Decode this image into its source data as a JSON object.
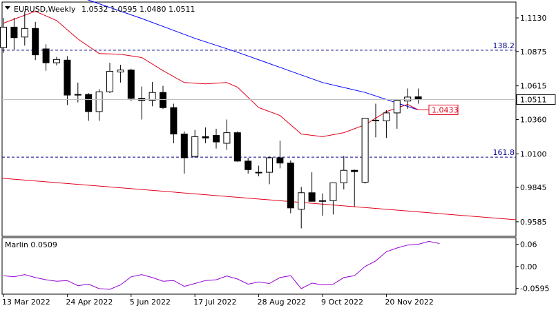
{
  "header": {
    "symbol": "EURUSD,Weekly",
    "ohlc": "1.0532 1.0595 1.0480 1.0511",
    "indicator": "Marlin 0.0509"
  },
  "colors": {
    "background": "#ffffff",
    "bull_body": "#ffffff",
    "bear_body": "#000000",
    "candle_outline": "#000000",
    "slow_ma": "#0000ff",
    "fast_ma": "#e0001a",
    "trendline": "#e0001a",
    "fib_level": "#00008b",
    "oscillator": "#9400d3",
    "grid_border": "#000000"
  },
  "chart_data": [
    {
      "type": "candlestick",
      "title": "EURUSD,Weekly",
      "ylim": [
        0.9475,
        1.125
      ],
      "y_ticks": [
        "1.1130",
        "1.0875",
        "1.0615",
        "1.0360",
        "1.0100",
        "0.9845",
        "0.9585"
      ],
      "y_tick_values": [
        1.113,
        1.0875,
        1.0615,
        1.036,
        1.01,
        0.9845,
        0.9585
      ],
      "x_ticks": [
        "13 Mar 2022",
        "24 Apr 2022",
        "5 Jun 2022",
        "17 Jul 2022",
        "28 Aug 2022",
        "9 Oct 2022",
        "20 Nov 2022"
      ],
      "x_tick_index": [
        0,
        6,
        12,
        18,
        24,
        30,
        36
      ],
      "candles": [
        {
          "o": 1.0905,
          "h": 1.113,
          "l": 1.0865,
          "c": 1.106
        },
        {
          "o": 1.106,
          "h": 1.113,
          "l": 1.089,
          "c": 1.098
        },
        {
          "o": 1.0985,
          "h": 1.118,
          "l": 1.092,
          "c": 1.105
        },
        {
          "o": 1.105,
          "h": 1.11,
          "l": 1.081,
          "c": 1.085
        },
        {
          "o": 1.0895,
          "h": 1.093,
          "l": 1.073,
          "c": 1.079
        },
        {
          "o": 1.079,
          "h": 1.0835,
          "l": 1.077,
          "c": 1.0815
        },
        {
          "o": 1.081,
          "h": 1.084,
          "l": 1.047,
          "c": 1.0545
        },
        {
          "o": 1.0545,
          "h": 1.064,
          "l": 1.049,
          "c": 1.055
        },
        {
          "o": 1.055,
          "h": 1.056,
          "l": 1.035,
          "c": 1.042
        },
        {
          "o": 1.042,
          "h": 1.059,
          "l": 1.035,
          "c": 1.057
        },
        {
          "o": 1.057,
          "h": 1.079,
          "l": 1.056,
          "c": 1.0725
        },
        {
          "o": 1.072,
          "h": 1.0775,
          "l": 1.064,
          "c": 1.0735
        },
        {
          "o": 1.0735,
          "h": 1.0745,
          "l": 1.05,
          "c": 1.052
        },
        {
          "o": 1.052,
          "h": 1.061,
          "l": 1.036,
          "c": 1.0505
        },
        {
          "o": 1.0505,
          "h": 1.0645,
          "l": 1.046,
          "c": 1.0565
        },
        {
          "o": 1.0565,
          "h": 1.0615,
          "l": 1.044,
          "c": 1.045
        },
        {
          "o": 1.045,
          "h": 1.048,
          "l": 1.018,
          "c": 1.025
        },
        {
          "o": 1.025,
          "h": 1.027,
          "l": 0.995,
          "c": 1.007
        },
        {
          "o": 1.008,
          "h": 1.028,
          "l": 1.007,
          "c": 1.023
        },
        {
          "o": 1.023,
          "h": 1.03,
          "l": 1.018,
          "c": 1.022
        },
        {
          "o": 1.024,
          "h": 1.029,
          "l": 1.014,
          "c": 1.019
        },
        {
          "o": 1.018,
          "h": 1.036,
          "l": 1.013,
          "c": 1.026
        },
        {
          "o": 1.026,
          "h": 1.027,
          "l": 1.004,
          "c": 1.0045
        },
        {
          "o": 1.0045,
          "h": 1.007,
          "l": 0.995,
          "c": 0.998
        },
        {
          "o": 0.996,
          "h": 1.001,
          "l": 0.993,
          "c": 0.996
        },
        {
          "o": 0.996,
          "h": 1.008,
          "l": 0.987,
          "c": 1.007
        },
        {
          "o": 1.007,
          "h": 1.02,
          "l": 0.999,
          "c": 1.003
        },
        {
          "o": 1.003,
          "h": 1.005,
          "l": 0.965,
          "c": 0.969
        },
        {
          "o": 0.968,
          "h": 0.985,
          "l": 0.9535,
          "c": 0.9805
        },
        {
          "o": 0.9805,
          "h": 0.996,
          "l": 0.974,
          "c": 0.974
        },
        {
          "o": 0.974,
          "h": 0.98,
          "l": 0.963,
          "c": 0.9745
        },
        {
          "o": 0.9745,
          "h": 0.988,
          "l": 0.964,
          "c": 0.988
        },
        {
          "o": 0.988,
          "h": 1.0085,
          "l": 0.983,
          "c": 0.9975
        },
        {
          "o": 0.9975,
          "h": 0.998,
          "l": 0.97,
          "c": 0.9965
        },
        {
          "o": 0.9885,
          "h": 1.037,
          "l": 0.9875,
          "c": 1.037
        },
        {
          "o": 1.0355,
          "h": 1.048,
          "l": 1.0225,
          "c": 1.0355
        },
        {
          "o": 1.035,
          "h": 1.043,
          "l": 1.022,
          "c": 1.041
        },
        {
          "o": 1.041,
          "h": 1.05,
          "l": 1.029,
          "c": 1.0505
        },
        {
          "o": 1.05,
          "h": 1.0595,
          "l": 1.044,
          "c": 1.053
        },
        {
          "o": 1.0532,
          "h": 1.0595,
          "l": 1.048,
          "c": 1.0511
        }
      ],
      "slow_ma": [
        [
          0,
          1.147
        ],
        [
          8,
          1.1265
        ],
        [
          13,
          1.1125
        ],
        [
          18,
          1.0975
        ],
        [
          22,
          1.087
        ],
        [
          26,
          1.0755
        ],
        [
          30,
          1.064
        ],
        [
          34,
          1.0565
        ],
        [
          37,
          1.0485
        ],
        [
          39,
          1.0433
        ]
      ],
      "fast_ma": [
        [
          0,
          1.109
        ],
        [
          3,
          1.118
        ],
        [
          5,
          1.111
        ],
        [
          7,
          1.097
        ],
        [
          9,
          1.086
        ],
        [
          11,
          1.0855
        ],
        [
          13,
          1.083
        ],
        [
          15,
          1.073
        ],
        [
          17,
          1.064
        ],
        [
          19,
          1.063
        ],
        [
          21,
          1.064
        ],
        [
          22,
          1.0605
        ],
        [
          24,
          1.045
        ],
        [
          26,
          1.039
        ],
        [
          28,
          1.025
        ],
        [
          30,
          1.023
        ],
        [
          32,
          1.026
        ],
        [
          34,
          1.032
        ],
        [
          36,
          1.042
        ],
        [
          38,
          1.0475
        ],
        [
          39,
          1.0433
        ]
      ],
      "trendline": [
        [
          0.9915,
          0.974
        ],
        [
          46.1,
          0.96
        ]
      ],
      "fib_levels": [
        {
          "label": "138.2",
          "value": 1.0885
        },
        {
          "label": "161.8",
          "value": 1.0075
        }
      ],
      "last_price_label": "1.0511",
      "last_price": 1.0511,
      "ma_value_label": "1.0433",
      "ma_value": 1.0433
    },
    {
      "type": "line",
      "title": "Marlin 0.0509",
      "ylim": [
        -0.075,
        0.078
      ],
      "y_ticks": [
        "0.06",
        "0.00",
        "-0.0595"
      ],
      "y_tick_values": [
        0.06,
        0.0,
        -0.0595
      ],
      "series": [
        {
          "values": [
            -0.025,
            -0.028,
            -0.022,
            -0.03,
            -0.036,
            -0.04,
            -0.038,
            -0.052,
            -0.048,
            -0.06,
            -0.062,
            -0.05,
            -0.028,
            -0.022,
            -0.03,
            -0.04,
            -0.038,
            -0.054,
            -0.046,
            -0.038,
            -0.036,
            -0.026,
            -0.034,
            -0.048,
            -0.042,
            -0.046,
            -0.03,
            -0.025,
            -0.06,
            -0.045,
            -0.05,
            -0.048,
            -0.03,
            -0.025,
            0.0,
            0.015,
            0.04,
            0.05,
            0.058,
            0.06,
            0.068,
            0.062
          ]
        }
      ]
    }
  ]
}
